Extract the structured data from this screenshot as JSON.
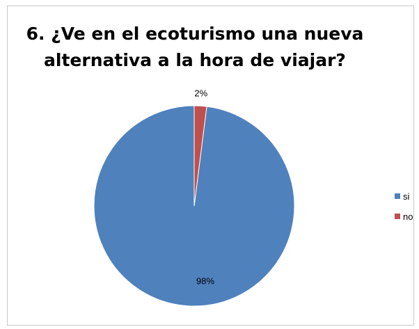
{
  "chart_data": {
    "type": "pie",
    "title": "6. ¿Ve en el ecoturismo una nueva alternativa a la hora de viajar?",
    "categories": [
      "si",
      "no"
    ],
    "values": [
      98,
      2
    ],
    "value_labels": [
      "98%",
      "2%"
    ],
    "colors": [
      "#4F81BD",
      "#C0504D"
    ],
    "legend_position": "right"
  }
}
